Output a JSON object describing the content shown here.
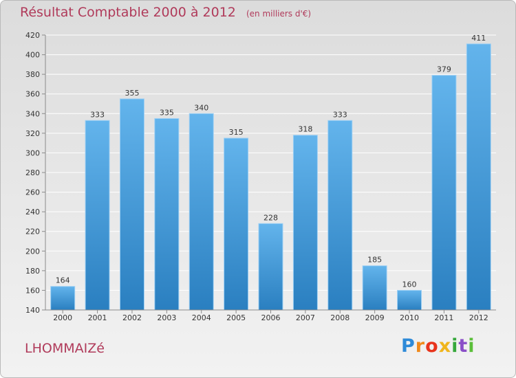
{
  "chart_data": {
    "type": "bar",
    "title": "Résultat Comptable 2000 à 2012",
    "subtitle": "(en milliers d'€)",
    "xlabel": "",
    "ylabel": "",
    "categories": [
      "2000",
      "2001",
      "2002",
      "2003",
      "2004",
      "2005",
      "2006",
      "2007",
      "2008",
      "2009",
      "2010",
      "2011",
      "2012"
    ],
    "values": [
      164,
      333,
      355,
      335,
      340,
      315,
      228,
      318,
      333,
      185,
      160,
      379,
      411
    ],
    "ylim": [
      140,
      420
    ],
    "yticks": [
      140,
      160,
      180,
      200,
      220,
      240,
      260,
      280,
      300,
      320,
      340,
      360,
      380,
      400,
      420
    ],
    "grid": true,
    "legend": "none"
  },
  "footer": {
    "place": "LHOMMAIZé",
    "logo_text": "Proxiti"
  },
  "colors": {
    "bar_light": "#63b4ec",
    "bar_dark": "#2a7fc0",
    "title": "#b03a5a",
    "logo": [
      "#2e8ad8",
      "#f08a1c",
      "#e8341c",
      "#f0b51c",
      "#36a83c",
      "#8a4fc8",
      "#5bbf3a"
    ]
  }
}
